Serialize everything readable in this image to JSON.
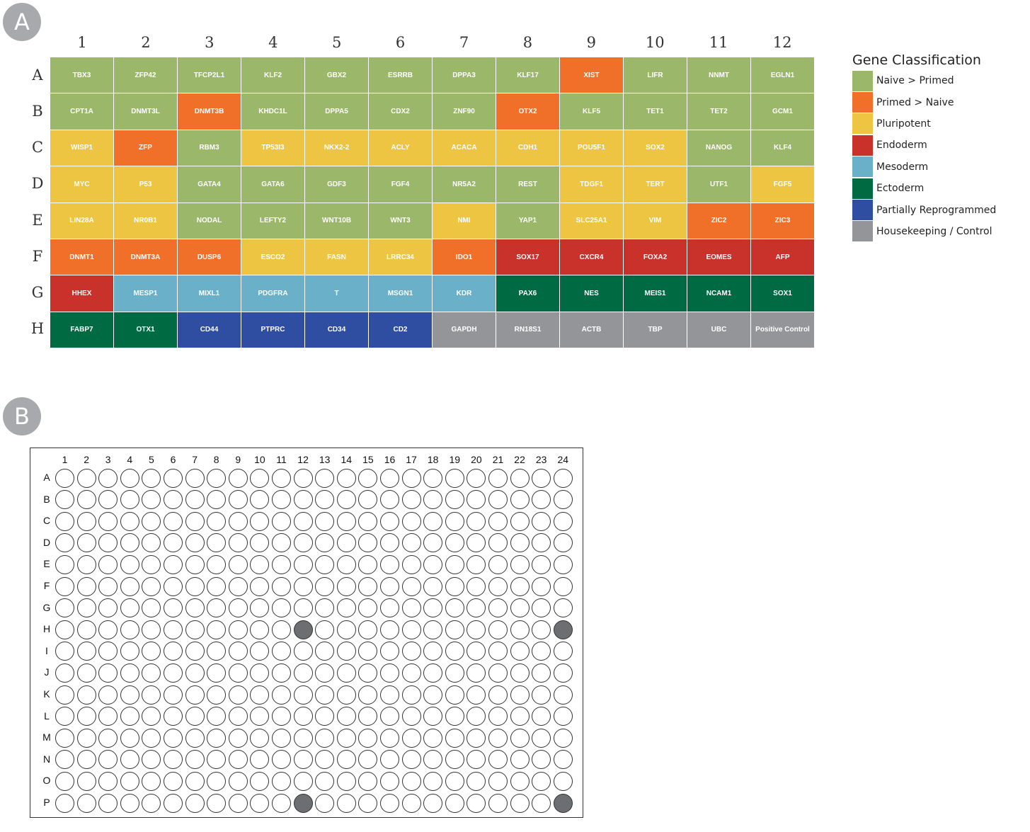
{
  "panel_a": {
    "badge": "A",
    "columns": [
      "1",
      "2",
      "3",
      "4",
      "5",
      "6",
      "7",
      "8",
      "9",
      "10",
      "11",
      "12"
    ],
    "rows": [
      "A",
      "B",
      "C",
      "D",
      "E",
      "F",
      "G",
      "H"
    ],
    "cells": [
      [
        [
          "TBX3",
          "naive_primed"
        ],
        [
          "ZFP42",
          "naive_primed"
        ],
        [
          "TFCP2L1",
          "naive_primed"
        ],
        [
          "KLF2",
          "naive_primed"
        ],
        [
          "GBX2",
          "naive_primed"
        ],
        [
          "ESRRB",
          "naive_primed"
        ],
        [
          "DPPA3",
          "naive_primed"
        ],
        [
          "KLF17",
          "naive_primed"
        ],
        [
          "XIST",
          "primed_naive"
        ],
        [
          "LIFR",
          "naive_primed"
        ],
        [
          "NNMT",
          "naive_primed"
        ],
        [
          "EGLN1",
          "naive_primed"
        ]
      ],
      [
        [
          "CPT1A",
          "naive_primed"
        ],
        [
          "DNMT3L",
          "naive_primed"
        ],
        [
          "DNMT3B",
          "primed_naive"
        ],
        [
          "KHDC1L",
          "naive_primed"
        ],
        [
          "DPPA5",
          "naive_primed"
        ],
        [
          "CDX2",
          "naive_primed"
        ],
        [
          "ZNF90",
          "naive_primed"
        ],
        [
          "OTX2",
          "primed_naive"
        ],
        [
          "KLF5",
          "naive_primed"
        ],
        [
          "TET1",
          "naive_primed"
        ],
        [
          "TET2",
          "naive_primed"
        ],
        [
          "GCM1",
          "naive_primed"
        ]
      ],
      [
        [
          "WISP1",
          "pluripotent"
        ],
        [
          "ZFP",
          "primed_naive"
        ],
        [
          "RBM3",
          "naive_primed"
        ],
        [
          "TP53I3",
          "pluripotent"
        ],
        [
          "NKX2-2",
          "pluripotent"
        ],
        [
          "ACLY",
          "pluripotent"
        ],
        [
          "ACACA",
          "pluripotent"
        ],
        [
          "CDH1",
          "pluripotent"
        ],
        [
          "POU5F1",
          "pluripotent"
        ],
        [
          "SOX2",
          "pluripotent"
        ],
        [
          "NANOG",
          "naive_primed"
        ],
        [
          "KLF4",
          "naive_primed"
        ]
      ],
      [
        [
          "MYC",
          "pluripotent"
        ],
        [
          "P53",
          "pluripotent"
        ],
        [
          "GATA4",
          "naive_primed"
        ],
        [
          "GATA6",
          "naive_primed"
        ],
        [
          "GDF3",
          "naive_primed"
        ],
        [
          "FGF4",
          "naive_primed"
        ],
        [
          "NR5A2",
          "naive_primed"
        ],
        [
          "REST",
          "naive_primed"
        ],
        [
          "TDGF1",
          "pluripotent"
        ],
        [
          "TERT",
          "pluripotent"
        ],
        [
          "UTF1",
          "naive_primed"
        ],
        [
          "FGF5",
          "pluripotent"
        ]
      ],
      [
        [
          "LIN28A",
          "pluripotent"
        ],
        [
          "NR0B1",
          "pluripotent"
        ],
        [
          "NODAL",
          "naive_primed"
        ],
        [
          "LEFTY2",
          "naive_primed"
        ],
        [
          "WNT10B",
          "naive_primed"
        ],
        [
          "WNT3",
          "naive_primed"
        ],
        [
          "NMI",
          "pluripotent"
        ],
        [
          "YAP1",
          "naive_primed"
        ],
        [
          "SLC25A1",
          "pluripotent"
        ],
        [
          "VIM",
          "pluripotent"
        ],
        [
          "ZIC2",
          "primed_naive"
        ],
        [
          "ZIC3",
          "primed_naive"
        ]
      ],
      [
        [
          "DNMT1",
          "primed_naive"
        ],
        [
          "DNMT3A",
          "primed_naive"
        ],
        [
          "DUSP6",
          "primed_naive"
        ],
        [
          "ESCO2",
          "pluripotent"
        ],
        [
          "FASN",
          "pluripotent"
        ],
        [
          "LRRC34",
          "pluripotent"
        ],
        [
          "IDO1",
          "primed_naive"
        ],
        [
          "SOX17",
          "endoderm"
        ],
        [
          "CXCR4",
          "endoderm"
        ],
        [
          "FOXA2",
          "endoderm"
        ],
        [
          "EOMES",
          "endoderm"
        ],
        [
          "AFP",
          "endoderm"
        ]
      ],
      [
        [
          "HHEX",
          "endoderm"
        ],
        [
          "MESP1",
          "mesoderm"
        ],
        [
          "MIXL1",
          "mesoderm"
        ],
        [
          "PDGFRA",
          "mesoderm"
        ],
        [
          "T",
          "mesoderm"
        ],
        [
          "MSGN1",
          "mesoderm"
        ],
        [
          "KDR",
          "mesoderm"
        ],
        [
          "PAX6",
          "ectoderm"
        ],
        [
          "NES",
          "ectoderm"
        ],
        [
          "MEIS1",
          "ectoderm"
        ],
        [
          "NCAM1",
          "ectoderm"
        ],
        [
          "SOX1",
          "ectoderm"
        ]
      ],
      [
        [
          "FABP7",
          "ectoderm"
        ],
        [
          "OTX1",
          "ectoderm"
        ],
        [
          "CD44",
          "partial"
        ],
        [
          "PTPRC",
          "partial"
        ],
        [
          "CD34",
          "partial"
        ],
        [
          "CD2",
          "partial"
        ],
        [
          "GAPDH",
          "housekeeping"
        ],
        [
          "RN18S1",
          "housekeeping"
        ],
        [
          "ACTB",
          "housekeeping"
        ],
        [
          "TBP",
          "housekeeping"
        ],
        [
          "UBC",
          "housekeeping"
        ],
        [
          "Positive Control",
          "housekeeping"
        ]
      ]
    ]
  },
  "legend": {
    "title": "Gene Classification",
    "items": [
      {
        "key": "naive_primed",
        "label": "Naive > Primed",
        "color": "#9bb86a"
      },
      {
        "key": "primed_naive",
        "label": "Primed > Naive",
        "color": "#f07029"
      },
      {
        "key": "pluripotent",
        "label": "Pluripotent",
        "color": "#eec543"
      },
      {
        "key": "endoderm",
        "label": "Endoderm",
        "color": "#c8322b"
      },
      {
        "key": "mesoderm",
        "label": "Mesoderm",
        "color": "#6ab0c8"
      },
      {
        "key": "ectoderm",
        "label": "Ectoderm",
        "color": "#006a43"
      },
      {
        "key": "partial",
        "label": "Partially Reprogrammed",
        "color": "#2f4ea1"
      },
      {
        "key": "housekeeping",
        "label": "Housekeeping / Control",
        "color": "#939598"
      }
    ]
  },
  "panel_b": {
    "badge": "B",
    "columns": [
      "1",
      "2",
      "3",
      "4",
      "5",
      "6",
      "7",
      "8",
      "9",
      "10",
      "11",
      "12",
      "13",
      "14",
      "15",
      "16",
      "17",
      "18",
      "19",
      "20",
      "21",
      "22",
      "23",
      "24"
    ],
    "rows": [
      "A",
      "B",
      "C",
      "D",
      "E",
      "F",
      "G",
      "H",
      "I",
      "J",
      "K",
      "L",
      "M",
      "N",
      "O",
      "P"
    ],
    "filled_wells": [
      [
        "H",
        "12"
      ],
      [
        "H",
        "24"
      ],
      [
        "P",
        "12"
      ],
      [
        "P",
        "24"
      ]
    ],
    "filled_color": "#6d6e71"
  }
}
